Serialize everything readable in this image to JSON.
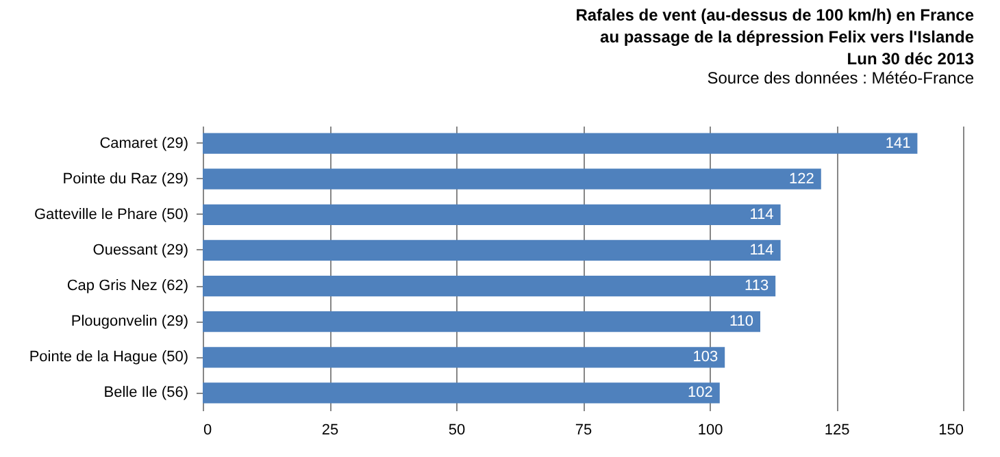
{
  "chart_data": {
    "type": "bar",
    "orientation": "horizontal",
    "title": "Rafales de vent (au-dessus de 100 km/h) en France\nau passage de la dépression Felix vers l'Islande\nLun 30 déc 2013",
    "annotations": [
      "Source des données : Météo-France"
    ],
    "categories": [
      "Camaret (29)",
      "Pointe du Raz (29)",
      "Gatteville le Phare (50)",
      "Ouessant (29)",
      "Cap Gris Nez (62)",
      "Plougonvelin (29)",
      "Pointe de la Hague (50)",
      "Belle Ile (56)"
    ],
    "values": [
      141,
      122,
      114,
      114,
      113,
      110,
      103,
      102
    ],
    "color": "#4f81bd",
    "xlim": [
      0,
      150
    ],
    "xticks": [
      0,
      25,
      50,
      75,
      100,
      125,
      150
    ],
    "grid": "x",
    "data_labels": true
  }
}
